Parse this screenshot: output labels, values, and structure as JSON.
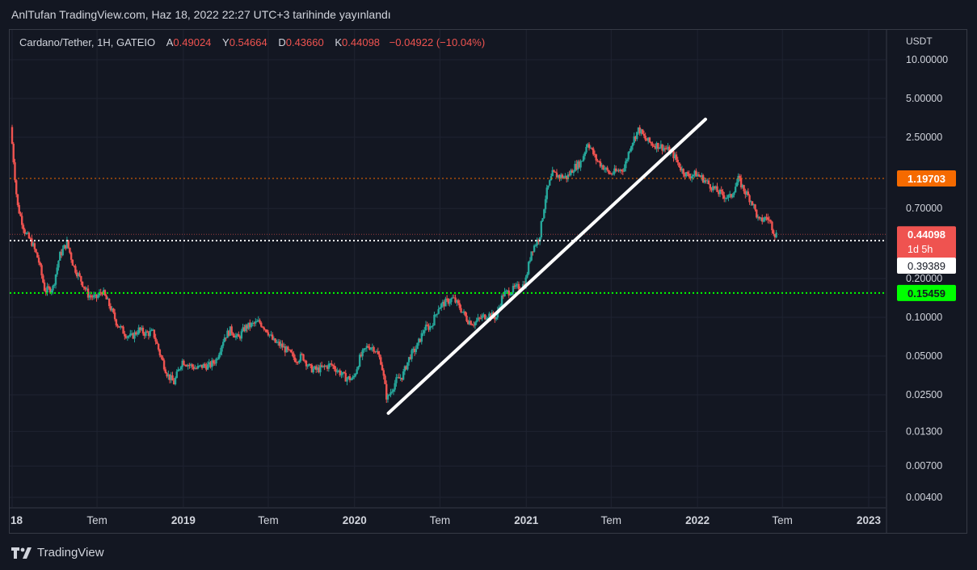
{
  "header": {
    "publish_text": "AnlTufan TradingView.com, Haz 18, 2022 22:27 UTC+3 tarihinde yayınlandı"
  },
  "legend": {
    "symbol": "Cardano/Tether, 1H, GATEIO",
    "open_label": "A",
    "open_value": "0.49024",
    "high_label": "Y",
    "high_value": "0.54664",
    "low_label": "D",
    "low_value": "0.43660",
    "close_label": "K",
    "close_value": "0.44098",
    "change": "−0.04922 (−10.04%)"
  },
  "footer": {
    "brand": "TradingView"
  },
  "colors": {
    "background": "#131722",
    "grid": "#1f2331",
    "up": "#26a69a",
    "down": "#ef5350",
    "orange": "#f56a00",
    "green": "#00ff00",
    "white": "#ffffff"
  },
  "chart_data": {
    "type": "candlestick",
    "scale": "log",
    "currency_label": "USDT",
    "y_ticks": [
      "10.00000",
      "5.00000",
      "2.50000",
      "0.70000",
      "0.20000",
      "0.10000",
      "0.05000",
      "0.02500",
      "0.01300",
      "0.00700",
      "0.00400"
    ],
    "x_ticks": [
      "18",
      "Tem",
      "2019",
      "Tem",
      "2020",
      "Tem",
      "2021",
      "Tem",
      "2022",
      "Tem",
      "2023"
    ],
    "x_ticks_bold": [
      "18",
      "2019",
      "2020",
      "2021",
      "2022",
      "2023"
    ],
    "ylim": [
      0.0032,
      14
    ],
    "horizontal_lines": [
      {
        "value": 1.19703,
        "label": "1.19703",
        "color": "#f56a00",
        "style": "dotted"
      },
      {
        "value": 0.39389,
        "label": "0.39389",
        "color": "#ffffff",
        "style": "dotted"
      },
      {
        "value": 0.15459,
        "label": "0.15459",
        "color": "#00ff00",
        "style": "dotted"
      }
    ],
    "last_price": {
      "value": 0.44098,
      "label": "0.44098",
      "countdown": "1d 5h",
      "color": "#ef5350"
    },
    "trendline": {
      "start": {
        "date": "2020-03-13",
        "price": 0.018
      },
      "end": {
        "date": "2022-01-18",
        "price": 3.45
      }
    },
    "series": [
      {
        "date": "2018-01-01",
        "price": 3.0
      },
      {
        "date": "2018-01-15",
        "price": 0.75
      },
      {
        "date": "2018-02-01",
        "price": 0.45
      },
      {
        "date": "2018-02-15",
        "price": 0.38
      },
      {
        "date": "2018-03-01",
        "price": 0.28
      },
      {
        "date": "2018-03-15",
        "price": 0.16
      },
      {
        "date": "2018-04-01",
        "price": 0.17
      },
      {
        "date": "2018-04-15",
        "price": 0.3
      },
      {
        "date": "2018-05-01",
        "price": 0.38
      },
      {
        "date": "2018-05-15",
        "price": 0.25
      },
      {
        "date": "2018-06-01",
        "price": 0.19
      },
      {
        "date": "2018-06-15",
        "price": 0.15
      },
      {
        "date": "2018-07-01",
        "price": 0.14
      },
      {
        "date": "2018-07-15",
        "price": 0.16
      },
      {
        "date": "2018-08-01",
        "price": 0.12
      },
      {
        "date": "2018-08-15",
        "price": 0.09
      },
      {
        "date": "2018-09-01",
        "price": 0.075
      },
      {
        "date": "2018-09-15",
        "price": 0.07
      },
      {
        "date": "2018-10-01",
        "price": 0.08
      },
      {
        "date": "2018-10-15",
        "price": 0.075
      },
      {
        "date": "2018-11-01",
        "price": 0.076
      },
      {
        "date": "2018-11-15",
        "price": 0.052
      },
      {
        "date": "2018-12-01",
        "price": 0.036
      },
      {
        "date": "2018-12-15",
        "price": 0.031
      },
      {
        "date": "2019-01-01",
        "price": 0.046
      },
      {
        "date": "2019-01-15",
        "price": 0.043
      },
      {
        "date": "2019-02-01",
        "price": 0.04
      },
      {
        "date": "2019-02-15",
        "price": 0.042
      },
      {
        "date": "2019-03-01",
        "price": 0.042
      },
      {
        "date": "2019-03-15",
        "price": 0.047
      },
      {
        "date": "2019-04-01",
        "price": 0.07
      },
      {
        "date": "2019-04-15",
        "price": 0.08
      },
      {
        "date": "2019-05-01",
        "price": 0.068
      },
      {
        "date": "2019-05-15",
        "price": 0.083
      },
      {
        "date": "2019-06-01",
        "price": 0.088
      },
      {
        "date": "2019-06-15",
        "price": 0.092
      },
      {
        "date": "2019-07-01",
        "price": 0.08
      },
      {
        "date": "2019-07-15",
        "price": 0.065
      },
      {
        "date": "2019-08-01",
        "price": 0.06
      },
      {
        "date": "2019-08-15",
        "price": 0.054
      },
      {
        "date": "2019-09-01",
        "price": 0.047
      },
      {
        "date": "2019-09-15",
        "price": 0.05
      },
      {
        "date": "2019-10-01",
        "price": 0.04
      },
      {
        "date": "2019-10-15",
        "price": 0.039
      },
      {
        "date": "2019-11-01",
        "price": 0.041
      },
      {
        "date": "2019-11-15",
        "price": 0.043
      },
      {
        "date": "2019-12-01",
        "price": 0.038
      },
      {
        "date": "2019-12-15",
        "price": 0.034
      },
      {
        "date": "2020-01-01",
        "price": 0.033
      },
      {
        "date": "2020-01-15",
        "price": 0.048
      },
      {
        "date": "2020-02-01",
        "price": 0.06
      },
      {
        "date": "2020-02-15",
        "price": 0.058
      },
      {
        "date": "2020-03-01",
        "price": 0.045
      },
      {
        "date": "2020-03-13",
        "price": 0.023
      },
      {
        "date": "2020-04-01",
        "price": 0.032
      },
      {
        "date": "2020-04-15",
        "price": 0.035
      },
      {
        "date": "2020-05-01",
        "price": 0.05
      },
      {
        "date": "2020-05-15",
        "price": 0.058
      },
      {
        "date": "2020-06-01",
        "price": 0.082
      },
      {
        "date": "2020-06-15",
        "price": 0.085
      },
      {
        "date": "2020-07-01",
        "price": 0.12
      },
      {
        "date": "2020-07-15",
        "price": 0.13
      },
      {
        "date": "2020-08-01",
        "price": 0.14
      },
      {
        "date": "2020-08-15",
        "price": 0.12
      },
      {
        "date": "2020-09-01",
        "price": 0.095
      },
      {
        "date": "2020-09-15",
        "price": 0.09
      },
      {
        "date": "2020-10-01",
        "price": 0.1
      },
      {
        "date": "2020-10-15",
        "price": 0.105
      },
      {
        "date": "2020-11-01",
        "price": 0.1
      },
      {
        "date": "2020-11-15",
        "price": 0.15
      },
      {
        "date": "2020-12-01",
        "price": 0.16
      },
      {
        "date": "2020-12-15",
        "price": 0.17
      },
      {
        "date": "2021-01-01",
        "price": 0.18
      },
      {
        "date": "2021-01-15",
        "price": 0.33
      },
      {
        "date": "2021-02-01",
        "price": 0.42
      },
      {
        "date": "2021-02-15",
        "price": 0.9
      },
      {
        "date": "2021-03-01",
        "price": 1.3
      },
      {
        "date": "2021-03-15",
        "price": 1.25
      },
      {
        "date": "2021-04-01",
        "price": 1.22
      },
      {
        "date": "2021-04-15",
        "price": 1.45
      },
      {
        "date": "2021-05-01",
        "price": 1.6
      },
      {
        "date": "2021-05-15",
        "price": 2.3
      },
      {
        "date": "2021-06-01",
        "price": 1.7
      },
      {
        "date": "2021-06-15",
        "price": 1.5
      },
      {
        "date": "2021-07-01",
        "price": 1.3
      },
      {
        "date": "2021-07-15",
        "price": 1.35
      },
      {
        "date": "2021-08-01",
        "price": 1.45
      },
      {
        "date": "2021-08-15",
        "price": 2.2
      },
      {
        "date": "2021-09-01",
        "price": 2.9
      },
      {
        "date": "2021-09-15",
        "price": 2.4
      },
      {
        "date": "2021-10-01",
        "price": 2.2
      },
      {
        "date": "2021-10-15",
        "price": 2.15
      },
      {
        "date": "2021-11-01",
        "price": 2.0
      },
      {
        "date": "2021-11-15",
        "price": 1.8
      },
      {
        "date": "2021-12-01",
        "price": 1.4
      },
      {
        "date": "2021-12-15",
        "price": 1.25
      },
      {
        "date": "2022-01-01",
        "price": 1.3
      },
      {
        "date": "2022-01-15",
        "price": 1.2
      },
      {
        "date": "2022-02-01",
        "price": 1.05
      },
      {
        "date": "2022-02-15",
        "price": 0.95
      },
      {
        "date": "2022-03-01",
        "price": 0.88
      },
      {
        "date": "2022-03-15",
        "price": 0.85
      },
      {
        "date": "2022-04-01",
        "price": 1.18
      },
      {
        "date": "2022-04-15",
        "price": 0.95
      },
      {
        "date": "2022-05-01",
        "price": 0.78
      },
      {
        "date": "2022-05-15",
        "price": 0.55
      },
      {
        "date": "2022-06-01",
        "price": 0.6
      },
      {
        "date": "2022-06-10",
        "price": 0.53
      },
      {
        "date": "2022-06-18",
        "price": 0.44098
      }
    ]
  }
}
